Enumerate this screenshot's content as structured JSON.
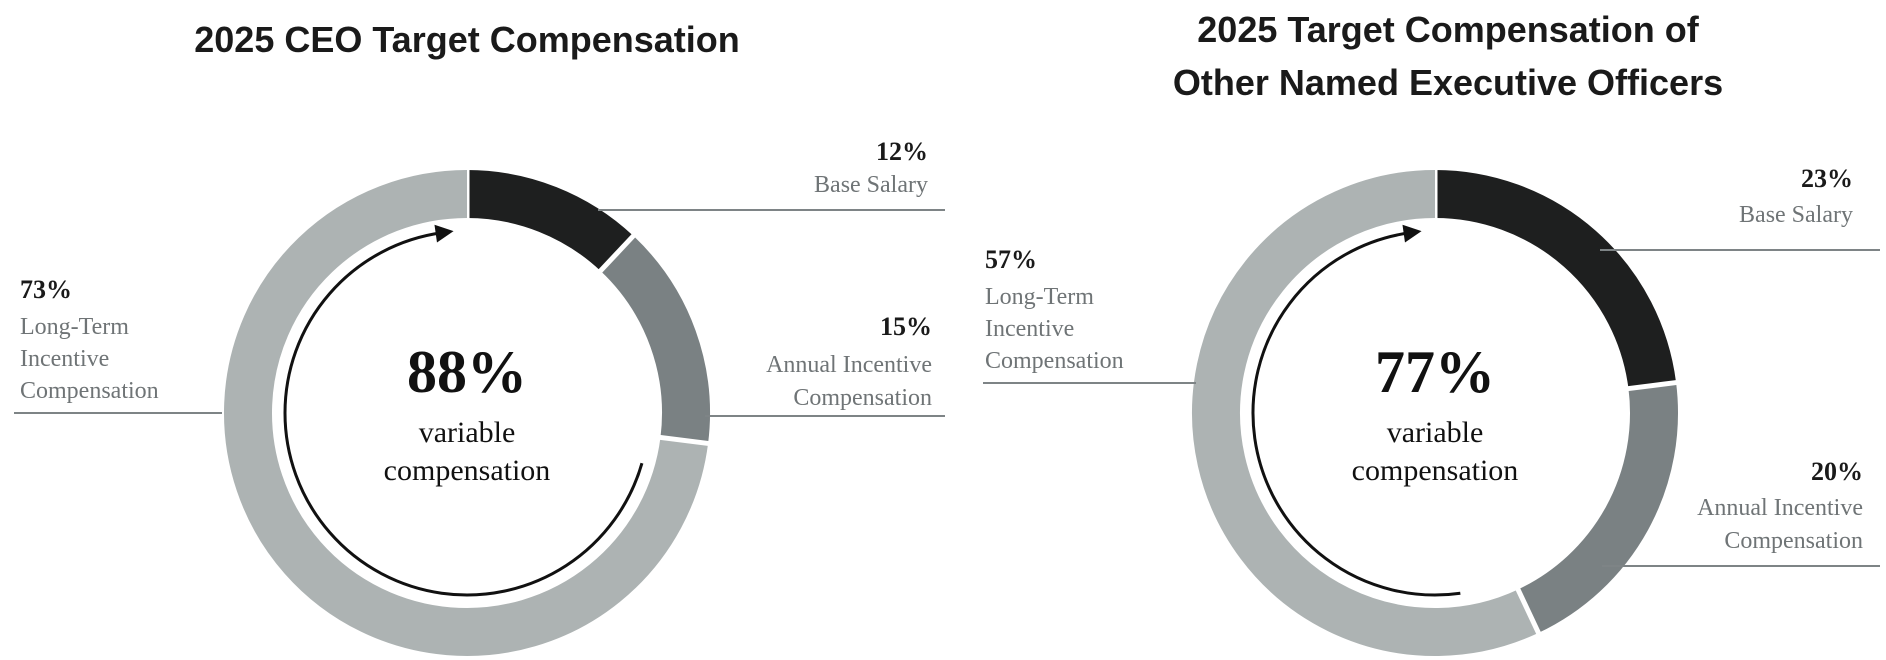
{
  "colors": {
    "base_salary": "#1e1f1f",
    "annual_incentive": "#7a8183",
    "long_term": "#adb3b3",
    "leader_line": "#7e8486",
    "arrow": "#111111"
  },
  "chart_data": [
    {
      "type": "pie",
      "title": "2025 CEO Target Compensation",
      "center": {
        "value": "88%",
        "line1": "variable",
        "line2": "compensation"
      },
      "series": [
        {
          "name": "Base Salary",
          "value": 12,
          "label": "12%",
          "label_lines": [
            "Base Salary"
          ]
        },
        {
          "name": "Annual Incentive Compensation",
          "value": 15,
          "label": "15%",
          "label_lines": [
            "Annual Incentive",
            "Compensation"
          ]
        },
        {
          "name": "Long-Term Incentive Compensation",
          "value": 73,
          "label": "73%",
          "label_lines": [
            "Long-Term",
            "Incentive",
            "Compensation"
          ]
        }
      ]
    },
    {
      "type": "pie",
      "title": [
        "2025 Target Compensation of",
        "Other Named Executive Officers"
      ],
      "center": {
        "value": "77%",
        "line1": "variable",
        "line2": "compensation"
      },
      "series": [
        {
          "name": "Base Salary",
          "value": 23,
          "label": "23%",
          "label_lines": [
            "Base Salary"
          ]
        },
        {
          "name": "Annual Incentive Compensation",
          "value": 20,
          "label": "20%",
          "label_lines": [
            "Annual Incentive",
            "Compensation"
          ]
        },
        {
          "name": "Long-Term Incentive Compensation",
          "value": 57,
          "label": "57%",
          "label_lines": [
            "Long-Term",
            "Incentive",
            "Compensation"
          ]
        }
      ]
    }
  ]
}
